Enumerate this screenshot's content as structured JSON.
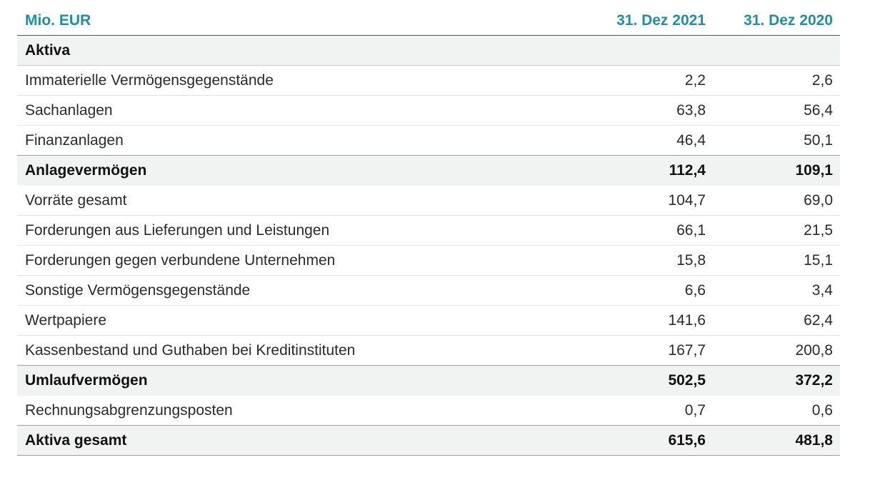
{
  "header": {
    "unit": "Mio. EUR",
    "col1": "31. Dez 2021",
    "col2": "31. Dez 2020"
  },
  "section_title": "Aktiva",
  "rows": [
    {
      "label": "Immaterielle Vermögensgegenstände",
      "v2021": "2,2",
      "v2020": "2,6"
    },
    {
      "label": "Sachanlagen",
      "v2021": "63,8",
      "v2020": "56,4"
    },
    {
      "label": "Finanzanlagen",
      "v2021": "46,4",
      "v2020": "50,1"
    },
    {
      "label": "Anlagevermögen",
      "v2021": "112,4",
      "v2020": "109,1"
    },
    {
      "label": "Vorräte gesamt",
      "v2021": "104,7",
      "v2020": "69,0"
    },
    {
      "label": "Forderungen aus Lieferungen und Leistungen",
      "v2021": "66,1",
      "v2020": "21,5"
    },
    {
      "label": "Forderungen gegen verbundene Unternehmen",
      "v2021": "15,8",
      "v2020": "15,1"
    },
    {
      "label": "Sonstige Vermögensgegenstände",
      "v2021": "6,6",
      "v2020": "3,4"
    },
    {
      "label": "Wertpapiere",
      "v2021": "141,6",
      "v2020": "62,4"
    },
    {
      "label": "Kassenbestand und Guthaben bei Kreditinstituten",
      "v2021": "167,7",
      "v2020": "200,8"
    },
    {
      "label": "Umlaufvermögen",
      "v2021": "502,5",
      "v2020": "372,2"
    },
    {
      "label": "Rechnungsabgrenzungsposten",
      "v2021": "0,7",
      "v2020": "0,6"
    },
    {
      "label": "Aktiva gesamt",
      "v2021": "615,6",
      "v2020": "481,8"
    }
  ],
  "colors": {
    "header_text": "#1f8fa6",
    "shaded_row": "#f1f3f3"
  }
}
